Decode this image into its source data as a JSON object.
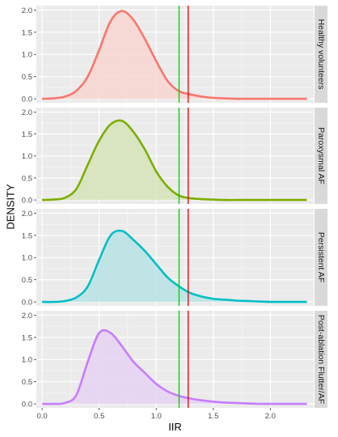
{
  "chart_data": {
    "type": "area",
    "xlabel": "IIR",
    "ylabel": "DENSITY",
    "xlim": [
      -0.05,
      2.38
    ],
    "ylim": [
      -0.09,
      2.1
    ],
    "x_ticks": [
      0.0,
      0.5,
      1.0,
      1.5,
      2.0
    ],
    "x_tick_labels": [
      "0.0",
      "0.5",
      "1.0",
      "1.5",
      "2.0"
    ],
    "y_ticks": [
      0.0,
      0.5,
      1.0,
      1.5,
      2.0
    ],
    "y_tick_labels": [
      "0.0",
      "0.5",
      "1.0",
      "1.5",
      "2.0"
    ],
    "grid": true,
    "legend": "none",
    "vlines": [
      {
        "x": 1.2,
        "color": "#00cc00"
      },
      {
        "x": 1.28,
        "color": "#e00000"
      }
    ],
    "x": [
      0.0,
      0.1,
      0.2,
      0.3,
      0.4,
      0.5,
      0.6,
      0.7,
      0.8,
      0.9,
      1.0,
      1.1,
      1.2,
      1.3,
      1.4,
      1.5,
      1.6,
      1.7,
      1.8,
      1.9,
      2.0,
      2.1,
      2.2,
      2.32
    ],
    "series": [
      {
        "name": "Healthy volunteers",
        "color": "#f8766d",
        "fill": "#f8d5d1",
        "values": [
          0.0,
          0.01,
          0.05,
          0.18,
          0.5,
          1.1,
          1.75,
          1.98,
          1.78,
          1.35,
          0.85,
          0.4,
          0.17,
          0.1,
          0.05,
          0.02,
          0.01,
          0.0,
          0.0,
          0.0,
          0.0,
          0.0,
          0.0,
          0.0
        ]
      },
      {
        "name": "Paroxysmal AF",
        "color": "#7cae00",
        "fill": "#d6e3b8",
        "values": [
          0.0,
          0.01,
          0.05,
          0.25,
          0.8,
          1.35,
          1.72,
          1.8,
          1.55,
          1.15,
          0.65,
          0.3,
          0.1,
          0.04,
          0.02,
          0.01,
          0.0,
          0.0,
          0.0,
          0.0,
          0.0,
          0.0,
          0.0,
          0.0
        ]
      },
      {
        "name": "Persistent AF",
        "color": "#00bfc4",
        "fill": "#b8e3e5",
        "values": [
          0.0,
          0.0,
          0.02,
          0.1,
          0.35,
          0.95,
          1.5,
          1.6,
          1.4,
          1.15,
          0.85,
          0.55,
          0.35,
          0.2,
          0.12,
          0.07,
          0.05,
          0.03,
          0.02,
          0.01,
          0.0,
          0.0,
          0.0,
          0.0
        ]
      },
      {
        "name": "Post-ablation Flutter/AF",
        "color": "#c77cff",
        "fill": "#e6d2f2",
        "values": [
          0.0,
          0.0,
          0.02,
          0.2,
          0.95,
          1.6,
          1.6,
          1.3,
          0.95,
          0.7,
          0.45,
          0.28,
          0.18,
          0.12,
          0.08,
          0.05,
          0.03,
          0.02,
          0.01,
          0.0,
          0.0,
          0.0,
          0.0,
          0.0
        ]
      }
    ]
  }
}
